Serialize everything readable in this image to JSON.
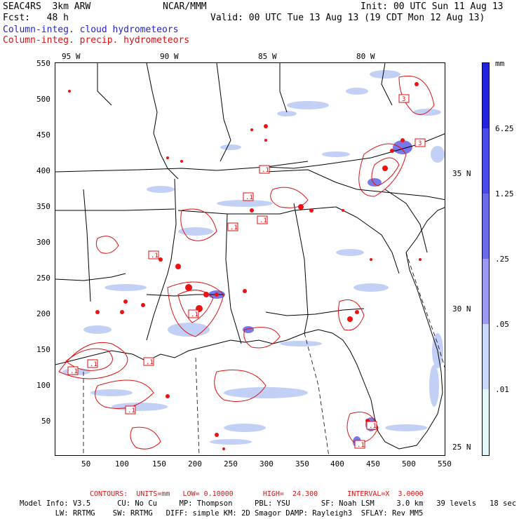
{
  "header": {
    "model": "SEAC4RS  3km ARW",
    "org": "NCAR/MMM",
    "init": "Init: 00 UTC Sun 11 Aug 13",
    "fcst": "Fcst:   48 h",
    "valid": "Valid: 00 UTC Tue 13 Aug 13 (19 CDT Mon 12 Aug 13)",
    "field_cloud": "Column-integ. cloud hydrometeors",
    "field_precip": "Column-integ. precip. hydrometeors"
  },
  "map": {
    "top_lon_labels": [
      "95 W",
      "90 W",
      "85 W",
      "80 W"
    ],
    "right_lat_labels": [
      "35 N",
      "30 N",
      "25 N"
    ],
    "left_ticks": [
      "550",
      "500",
      "450",
      "400",
      "350",
      "300",
      "250",
      "200",
      "150",
      "100",
      "50"
    ],
    "bottom_ticks": [
      "50",
      "100",
      "150",
      "200",
      "250",
      "300",
      "350",
      "400",
      "450",
      "500",
      "550"
    ],
    "contour_labels": [
      ".1",
      ".1",
      ".1",
      ".1",
      ".1",
      ".1",
      ".1",
      ".1",
      ".1",
      ".1",
      "3",
      "3",
      ".1",
      ".1"
    ]
  },
  "colorbar": {
    "unit": "mm",
    "labels": [
      "6.25",
      "1.25",
      ".25",
      ".05",
      ".01"
    ],
    "colors": [
      "#2222dd",
      "#4a4ae8",
      "#6a6ae8",
      "#9a9af0",
      "#c8d8f8",
      "#e0f6f8",
      "#ffffff"
    ]
  },
  "footer": {
    "contours": "CONTOURS:  UNITS=mm   LOW= 0.10000       HIGH=  24.300       INTERVAL=X  3.0000",
    "line1": "Model Info: V3.5      CU: No Cu     MP: Thompson     PBL: YSU       SF: Noah LSM     3.0 km   39 levels   18 sec",
    "line2": "        LW: RRTMG    SW: RRTMG   DIFF: simple KM: 2D Smagor DAMP: Rayleigh3  SFLAY: Rev MM5"
  }
}
